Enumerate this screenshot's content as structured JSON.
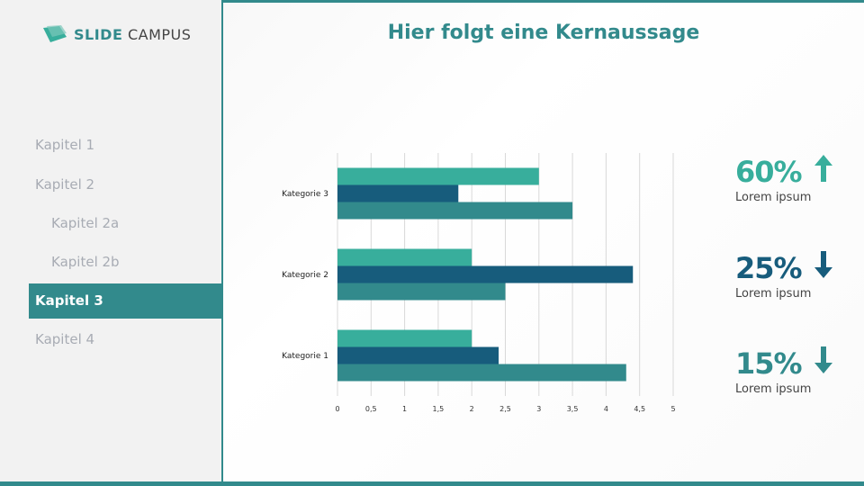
{
  "logo": {
    "brand_bold": "SLIDE",
    "brand_light": "CAMPUS"
  },
  "title": "Hier folgt eine Kernaussage",
  "sidebar": {
    "items": [
      {
        "label": "Kapitel 1",
        "active": false,
        "sub": false
      },
      {
        "label": "Kapitel 2",
        "active": false,
        "sub": false
      },
      {
        "label": "Kapitel 2a",
        "active": false,
        "sub": true
      },
      {
        "label": "Kapitel 2b",
        "active": false,
        "sub": true
      },
      {
        "label": "Kapitel 3",
        "active": true,
        "sub": false
      },
      {
        "label": "Kapitel 4",
        "active": false,
        "sub": false
      }
    ]
  },
  "kpis": [
    {
      "value": "60%",
      "direction": "up",
      "icon": "arrow-up-icon",
      "color": "#38ae9c",
      "label": "Lorem ipsum"
    },
    {
      "value": "25%",
      "direction": "down",
      "icon": "arrow-down-icon",
      "color": "#175c7c",
      "label": "Lorem ipsum"
    },
    {
      "value": "15%",
      "direction": "down",
      "icon": "arrow-down-icon",
      "color": "#328a8c",
      "label": "Lorem ipsum"
    }
  ],
  "colors": {
    "accent": "#328a8c",
    "light_teal": "#38ae9c",
    "dark_blue": "#175c7c"
  },
  "chart_data": {
    "type": "bar",
    "orientation": "horizontal",
    "categories": [
      "Kategorie 1",
      "Kategorie 2",
      "Kategorie 3"
    ],
    "series": [
      {
        "values": [
          2,
          2,
          3
        ],
        "color": "#38ae9c"
      },
      {
        "values": [
          2.4,
          4.4,
          1.8
        ],
        "color": "#175c7c"
      },
      {
        "values": [
          4.3,
          2.5,
          3.5
        ],
        "color": "#328a8c"
      }
    ],
    "xlim": [
      0,
      5
    ],
    "xticks": [
      "0",
      "0,5",
      "1",
      "1,5",
      "2",
      "2,5",
      "3",
      "3,5",
      "4",
      "4,5",
      "5"
    ],
    "grid": "vertical",
    "legend": "none"
  }
}
